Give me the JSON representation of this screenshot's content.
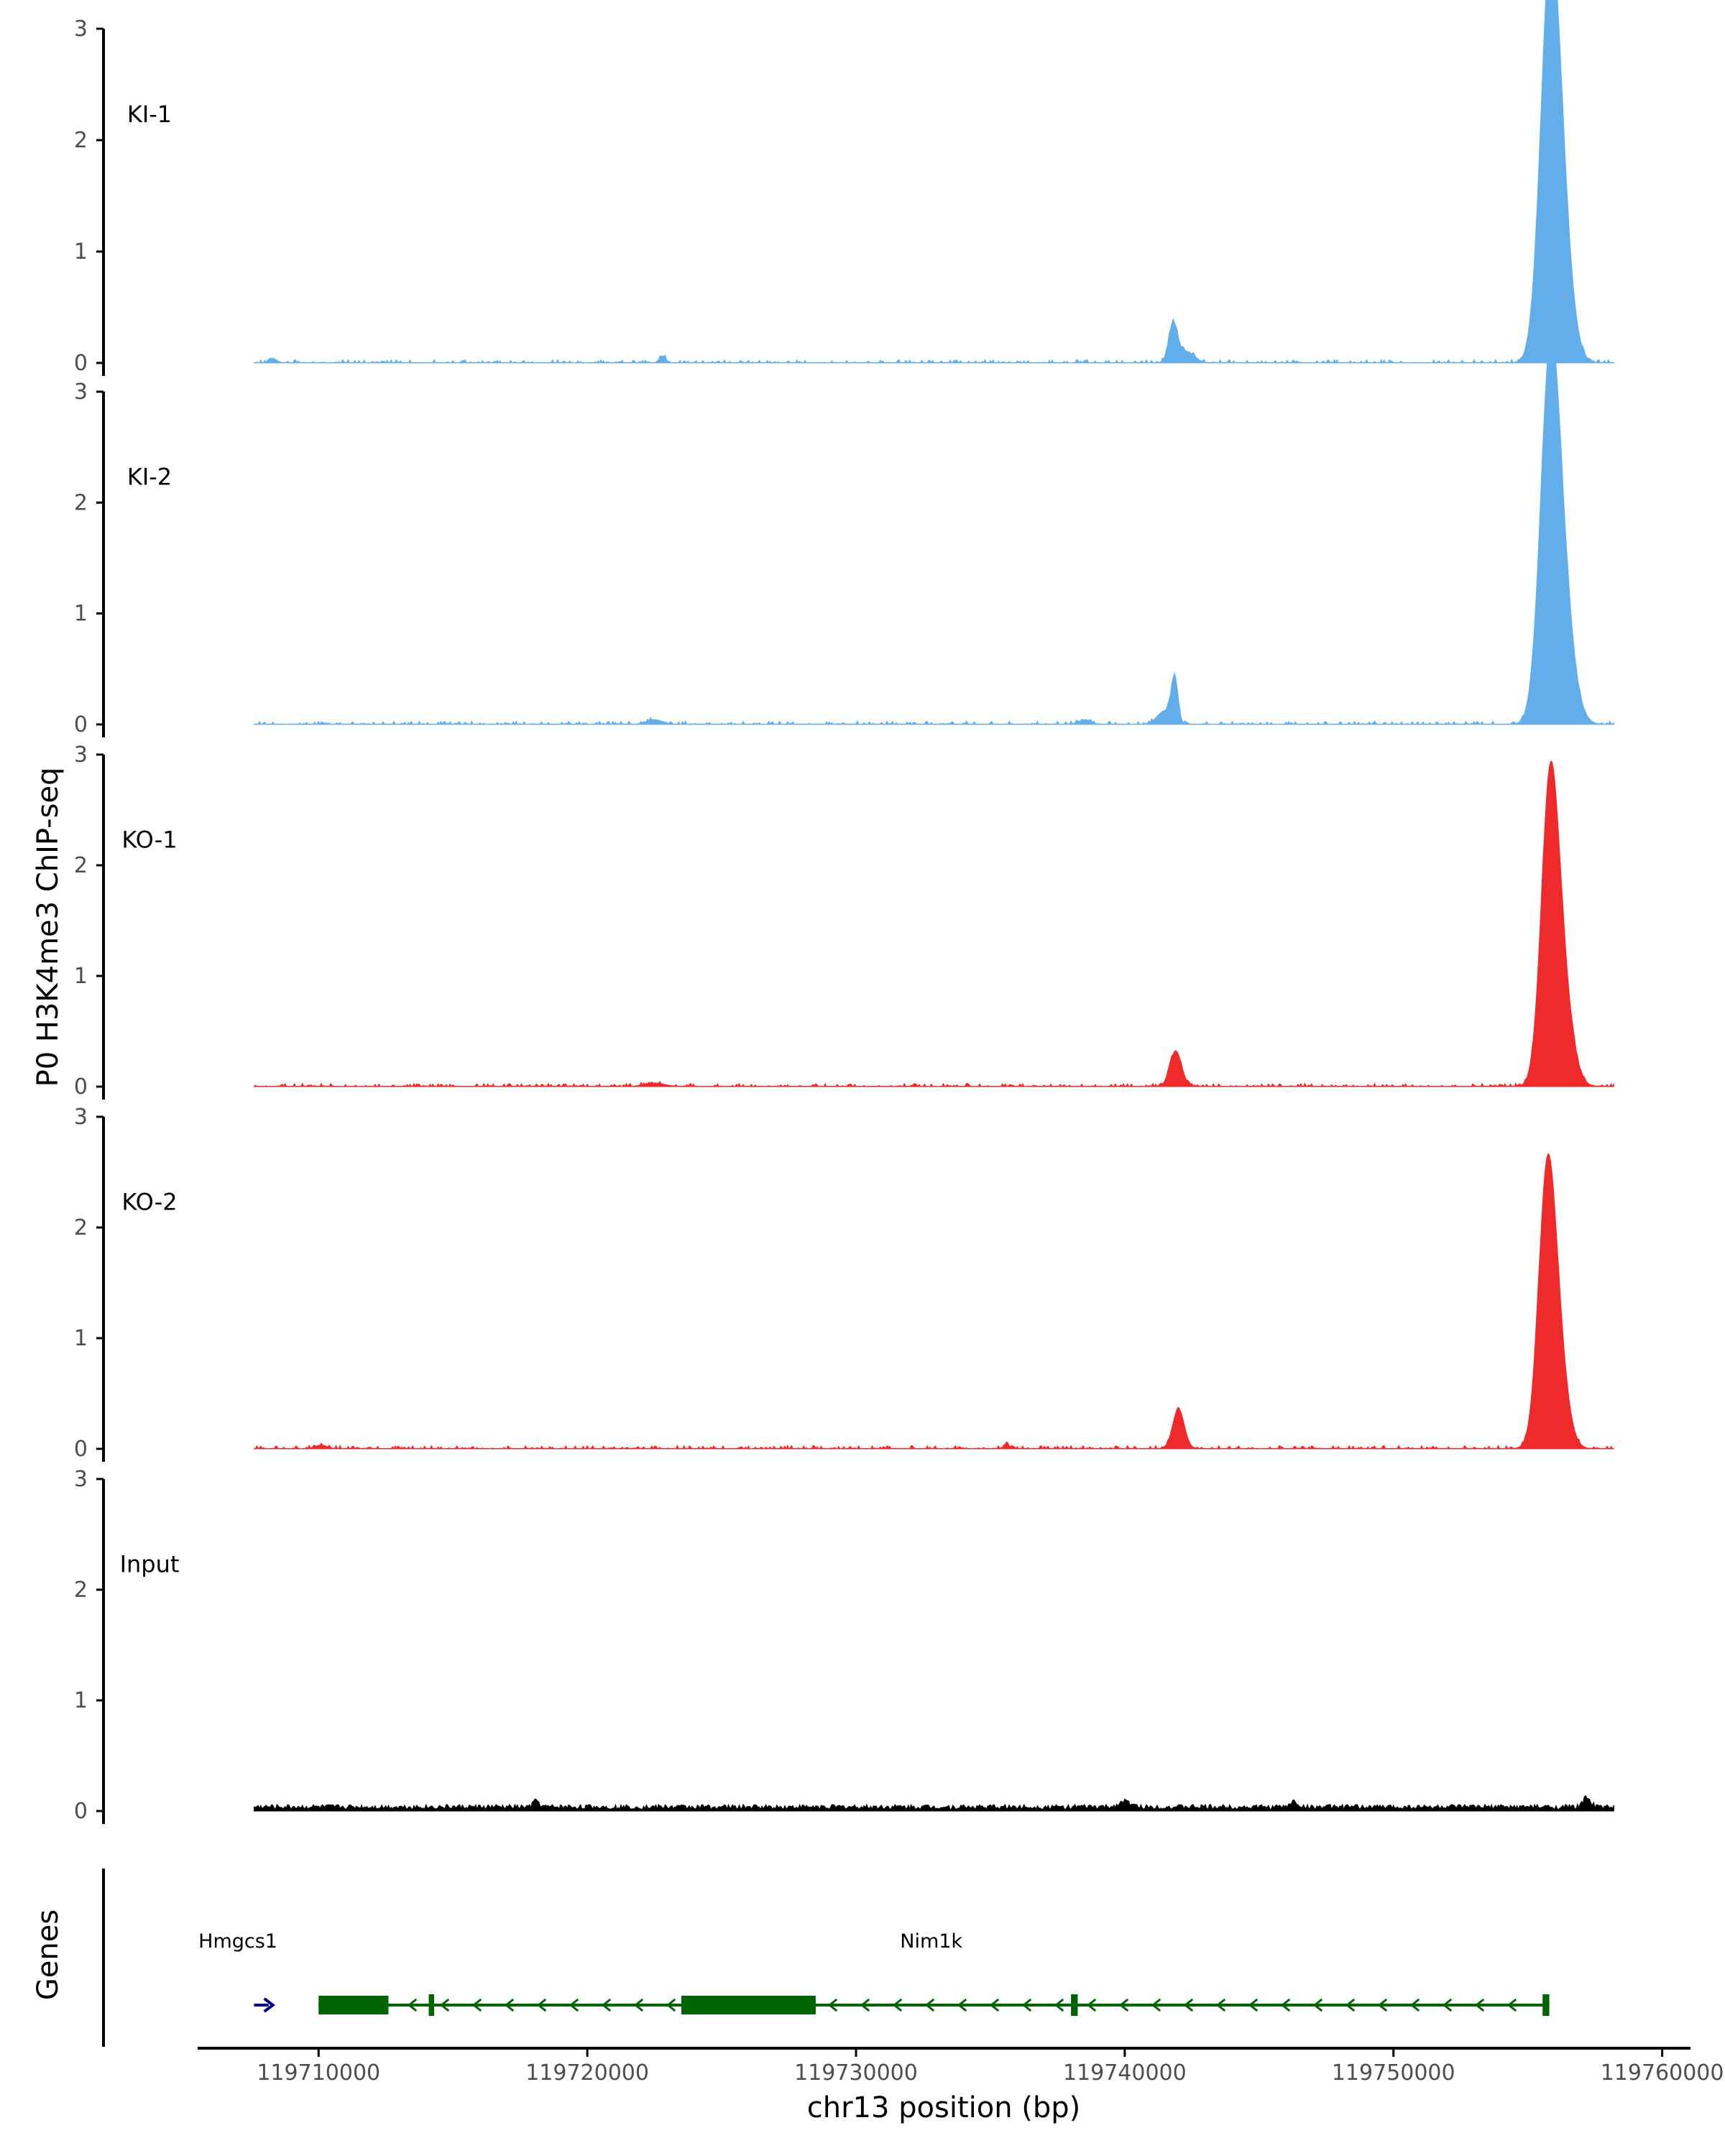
{
  "figure": {
    "ylabel": "P0 H3K4me3 ChIP-seq",
    "xlabel": "chr13 position (bp)",
    "genes_label": "Genes"
  },
  "chart_data": {
    "type": "area",
    "title": "",
    "xlabel": "chr13 position (bp)",
    "ylabel": "P0 H3K4me3 ChIP-seq",
    "xlim": [
      119705500,
      119761000
    ],
    "ylim": [
      0,
      3
    ],
    "yticks": [
      0,
      1,
      2,
      3
    ],
    "xticks": [
      119710000,
      119720000,
      119730000,
      119740000,
      119750000,
      119760000
    ],
    "xtick_labels": [
      "119710000",
      "119720000",
      "119730000",
      "119740000",
      "119750000",
      "119760000"
    ],
    "grid": false,
    "legend": "none",
    "track_x_range": [
      119707600,
      119758200
    ],
    "series": [
      {
        "name": "KI-1",
        "color": "#61AEEA",
        "peaks": [
          [
            119755800,
            2.95,
            500
          ],
          [
            119756200,
            1.25,
            550
          ],
          [
            119741800,
            0.35,
            230
          ],
          [
            119742300,
            0.1,
            400
          ],
          [
            119722800,
            0.06,
            160
          ],
          [
            119708300,
            0.04,
            150
          ]
        ]
      },
      {
        "name": "KI-2",
        "color": "#61AEEA",
        "peaks": [
          [
            119755800,
            2.65,
            500
          ],
          [
            119756200,
            1.25,
            600
          ],
          [
            119741850,
            0.38,
            170
          ],
          [
            119741500,
            0.12,
            400
          ],
          [
            119722500,
            0.04,
            400
          ],
          [
            119738500,
            0.04,
            300
          ]
        ]
      },
      {
        "name": "KO-1",
        "color": "#EE2A2A",
        "peaks": [
          [
            119755800,
            2.3,
            450
          ],
          [
            119756200,
            1.0,
            550
          ],
          [
            119741900,
            0.32,
            300
          ],
          [
            119722500,
            0.03,
            500
          ]
        ]
      },
      {
        "name": "KO-2",
        "color": "#EE2A2A",
        "peaks": [
          [
            119755700,
            2.2,
            450
          ],
          [
            119756100,
            0.8,
            500
          ],
          [
            119742000,
            0.36,
            300
          ],
          [
            119735600,
            0.04,
            150
          ],
          [
            119710100,
            0.03,
            300
          ]
        ]
      },
      {
        "name": "Input",
        "color": "#000000",
        "baseline": 0.04,
        "peaks": [
          [
            119740000,
            0.05,
            300
          ],
          [
            119757200,
            0.09,
            200
          ],
          [
            119718100,
            0.06,
            150
          ],
          [
            119746300,
            0.05,
            200
          ]
        ]
      }
    ],
    "genes": [
      {
        "name": "Hmgcs1",
        "strand": "+",
        "color": "#000080",
        "start": 119707600,
        "end": 119708300,
        "label_x": 119707000
      },
      {
        "name": "Nim1k",
        "strand": "-",
        "color": "#006400",
        "start": 119710000,
        "end": 119755800,
        "label_x": 119732800,
        "exons": [
          [
            119710000,
            119712600,
            "thick"
          ],
          [
            119714100,
            119714300,
            "thin"
          ],
          [
            119723500,
            119728500,
            "thick"
          ],
          [
            119738000,
            119738250,
            "thin"
          ],
          [
            119755550,
            119755800,
            "thin"
          ]
        ]
      }
    ]
  }
}
